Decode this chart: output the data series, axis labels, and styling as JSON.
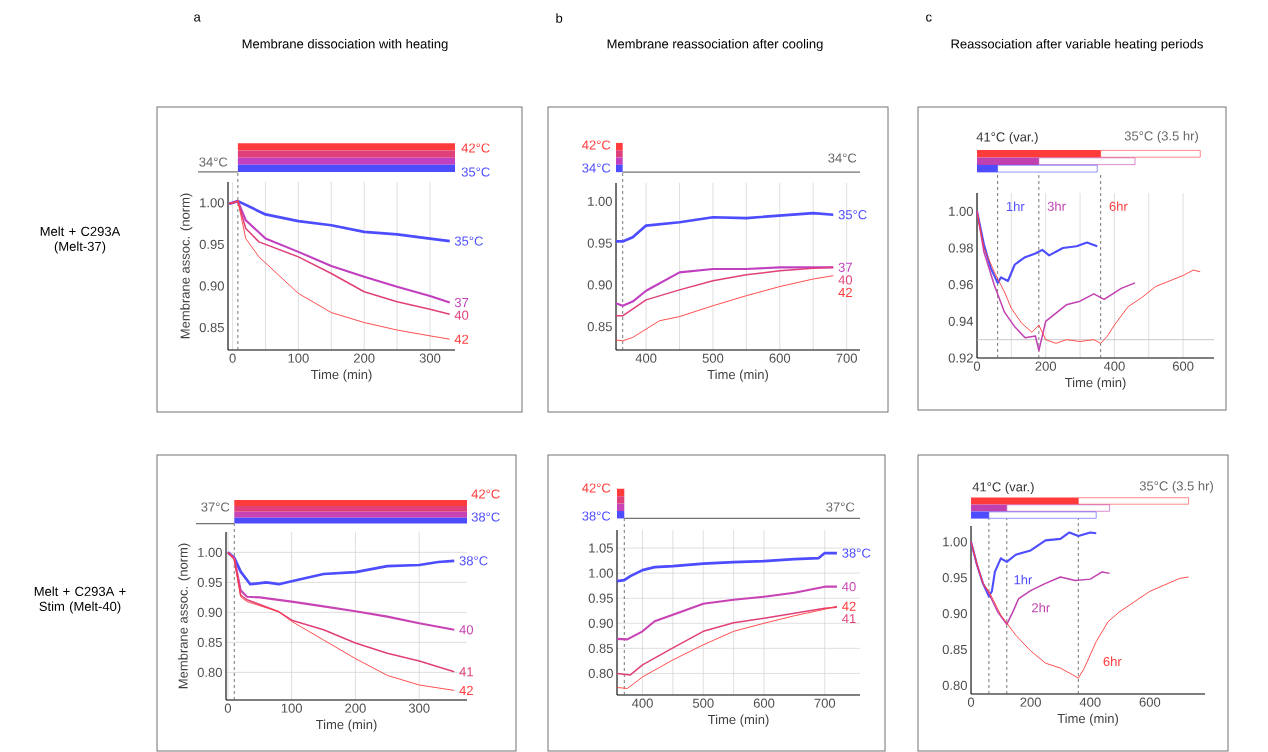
{
  "chart_data": [
    {
      "type": "line",
      "title": "a",
      "subtitle": "Membrane dissociation with heating",
      "xlabel": "Time (min)",
      "ylabel": "Membrane assoc. (norm)",
      "annotations": [
        "Melt + C293A (Melt-37)",
        "34°C",
        "42°C",
        "35°C"
      ],
      "xlim": [
        -7,
        338
      ],
      "ylim": [
        0.823,
        1.025
      ],
      "xticks": [
        0,
        {
          "value": 50,
          "label": null
        },
        100,
        {
          "value": 150,
          "label": null
        },
        200,
        {
          "value": 250,
          "label": null
        },
        300
      ],
      "yticks": [
        0.85,
        {
          "value": 0.9,
          "label": "0.90"
        },
        0.95,
        {
          "value": 1,
          "label": "1.00"
        }
      ],
      "grid": "x",
      "ref_lines": [
        {
          "axis": "x",
          "value": 8,
          "color": "#555555",
          "line_style": "dashed"
        }
      ],
      "series": [
        {
          "name": "35°C",
          "color": "#4d4dff",
          "x": [
            -5,
            0,
            8,
            50,
            100,
            150,
            200,
            250,
            300,
            330
          ],
          "values": [
            0.999,
            1.0,
            1.002,
            0.986,
            0.978,
            0.973,
            0.965,
            0.962,
            0.957,
            0.954
          ]
        },
        {
          "name": "37",
          "color": "#c040c0",
          "x": [
            -5,
            0,
            8,
            20,
            50,
            100,
            150,
            200,
            250,
            300,
            330
          ],
          "values": [
            0.999,
            1.0,
            1.002,
            0.979,
            0.957,
            0.941,
            0.924,
            0.911,
            0.899,
            0.888,
            0.88
          ]
        },
        {
          "name": "40",
          "color": "#e0407a",
          "x": [
            -5,
            0,
            8,
            20,
            40,
            100,
            150,
            200,
            250,
            300,
            330
          ],
          "values": [
            0.999,
            1.0,
            1.002,
            0.969,
            0.953,
            0.935,
            0.915,
            0.893,
            0.881,
            0.872,
            0.866
          ]
        },
        {
          "name": "42",
          "color": "#ff3b3b",
          "x": [
            -5,
            0,
            8,
            20,
            40,
            100,
            150,
            200,
            250,
            300,
            330
          ],
          "values": [
            0.999,
            1.0,
            1.002,
            0.957,
            0.935,
            0.891,
            0.868,
            0.856,
            0.847,
            0.84,
            0.836
          ]
        }
      ]
    },
    {
      "type": "line",
      "title": "b",
      "subtitle": "Membrane reassociation after cooling",
      "xlabel": "Time (min)",
      "annotations": [
        "42°C",
        "34°C",
        "34°C"
      ],
      "xlim": [
        355,
        720
      ],
      "ylim": [
        0.822,
        1.022
      ],
      "xticks": [
        400,
        {
          "value": 450,
          "label": null
        },
        500,
        {
          "value": 550,
          "label": null
        },
        600,
        {
          "value": 650,
          "label": null
        },
        700
      ],
      "yticks": [
        0.85,
        {
          "value": 0.9,
          "label": "0.90"
        },
        0.95,
        {
          "value": 1,
          "label": "1.00"
        }
      ],
      "grid": "x",
      "ref_lines": [
        {
          "axis": "x",
          "value": 365,
          "color": "#555555",
          "line_style": "dashed"
        }
      ],
      "series": [
        {
          "name": "35°C",
          "color": "#4d4dff",
          "x": [
            355,
            365,
            380,
            400,
            450,
            500,
            550,
            600,
            650,
            680
          ],
          "values": [
            0.952,
            0.952,
            0.957,
            0.971,
            0.975,
            0.981,
            0.98,
            0.983,
            0.986,
            0.984
          ]
        },
        {
          "name": "37",
          "color": "#c040c0",
          "x": [
            355,
            365,
            380,
            400,
            450,
            500,
            550,
            600,
            650,
            680
          ],
          "values": [
            0.878,
            0.875,
            0.88,
            0.893,
            0.915,
            0.919,
            0.919,
            0.921,
            0.921,
            0.921
          ]
        },
        {
          "name": "40",
          "color": "#e0407a",
          "x": [
            355,
            365,
            400,
            450,
            500,
            550,
            600,
            650,
            680
          ],
          "values": [
            0.863,
            0.863,
            0.882,
            0.894,
            0.905,
            0.912,
            0.917,
            0.92,
            0.921
          ]
        },
        {
          "name": "42",
          "color": "#ff3b3b",
          "x": [
            355,
            365,
            380,
            420,
            450,
            500,
            550,
            600,
            650,
            680
          ],
          "values": [
            0.834,
            0.833,
            0.837,
            0.857,
            0.862,
            0.875,
            0.887,
            0.898,
            0.907,
            0.911
          ]
        }
      ]
    },
    {
      "type": "line",
      "title": "c",
      "subtitle": "Reassociation after variable heating periods",
      "xlabel": "Time (min)",
      "annotations": [
        "41°C (var.)",
        "35°C (3.5 hr)"
      ],
      "xlim": [
        0,
        690
      ],
      "ylim": [
        0.92,
        1.01
      ],
      "xticks": [
        0,
        {
          "value": 100,
          "label": null
        },
        200,
        {
          "value": 300,
          "label": null
        },
        400,
        {
          "value": 500,
          "label": null
        },
        600
      ],
      "yticks": [
        0.92,
        0.94,
        0.96,
        0.98,
        {
          "value": 1,
          "label": "1.00"
        }
      ],
      "grid": "x",
      "ref_lines": [
        {
          "axis": "x",
          "value": 60,
          "color": "#555555",
          "line_style": "dashed"
        },
        {
          "axis": "x",
          "value": 180,
          "color": "#555555",
          "line_style": "dashed"
        },
        {
          "axis": "x",
          "value": 360,
          "color": "#555555",
          "line_style": "dashed"
        },
        {
          "axis": "y",
          "value": 0.93,
          "color": "#bbbbbb",
          "line_style": "solid"
        }
      ],
      "series": [
        {
          "name": "1hr",
          "color": "#4d4dff",
          "x": [
            0,
            20,
            40,
            60,
            70,
            90,
            110,
            140,
            170,
            190,
            210,
            250,
            290,
            320,
            350
          ],
          "values": [
            1.0,
            0.982,
            0.969,
            0.961,
            0.964,
            0.962,
            0.971,
            0.975,
            0.977,
            0.979,
            0.976,
            0.98,
            0.981,
            0.983,
            0.981
          ]
        },
        {
          "name": "3hr",
          "color": "#c040b0",
          "x": [
            0,
            20,
            50,
            80,
            110,
            140,
            170,
            180,
            200,
            220,
            260,
            300,
            340,
            370,
            420,
            460
          ],
          "values": [
            1.0,
            0.978,
            0.96,
            0.945,
            0.937,
            0.931,
            0.932,
            0.924,
            0.94,
            0.943,
            0.949,
            0.951,
            0.955,
            0.952,
            0.958,
            0.961
          ]
        },
        {
          "name": "6hr",
          "color": "#ff3b3b",
          "x": [
            0,
            20,
            50,
            80,
            100,
            130,
            160,
            180,
            200,
            230,
            260,
            300,
            340,
            360,
            380,
            400,
            440,
            480,
            520,
            560,
            600,
            630,
            650
          ],
          "values": [
            1.0,
            0.98,
            0.967,
            0.956,
            0.947,
            0.939,
            0.934,
            0.938,
            0.93,
            0.928,
            0.93,
            0.929,
            0.93,
            0.928,
            0.932,
            0.938,
            0.948,
            0.953,
            0.959,
            0.962,
            0.965,
            0.968,
            0.967
          ]
        }
      ]
    },
    {
      "type": "line",
      "xlabel": "Time (min)",
      "ylabel": "Membrane assoc. (norm)",
      "annotations": [
        "Melt + C293A + Stim (Melt-40)",
        "37°C",
        "42°C",
        "38°C"
      ],
      "xlim": [
        -3,
        375
      ],
      "ylim": [
        0.754,
        1.034
      ],
      "xticks": [
        0,
        100,
        200,
        300
      ],
      "yticks": [
        {
          "value": 0.8,
          "label": "0.80"
        },
        0.85,
        {
          "value": 0.9,
          "label": "0.90"
        },
        0.95,
        {
          "value": 1,
          "label": "1.00"
        }
      ],
      "grid": true,
      "ref_lines": [
        {
          "axis": "x",
          "value": 10,
          "color": "#555555",
          "line_style": "dashed"
        }
      ],
      "series": [
        {
          "name": "38°C",
          "color": "#4d4dff",
          "x": [
            0,
            10,
            20,
            35,
            60,
            80,
            100,
            150,
            200,
            250,
            300,
            330,
            355
          ],
          "values": [
            1.0,
            0.991,
            0.968,
            0.947,
            0.95,
            0.947,
            0.952,
            0.964,
            0.967,
            0.977,
            0.979,
            0.984,
            0.986
          ]
        },
        {
          "name": "40",
          "color": "#c844b4",
          "x": [
            0,
            10,
            20,
            30,
            50,
            100,
            150,
            200,
            250,
            300,
            355
          ],
          "values": [
            1.0,
            0.99,
            0.937,
            0.926,
            0.925,
            0.918,
            0.91,
            0.902,
            0.893,
            0.882,
            0.871
          ]
        },
        {
          "name": "41",
          "color": "#e0407a",
          "x": [
            0,
            10,
            20,
            30,
            80,
            100,
            150,
            200,
            250,
            300,
            355
          ],
          "values": [
            1.0,
            0.99,
            0.929,
            0.921,
            0.901,
            0.887,
            0.871,
            0.849,
            0.832,
            0.819,
            0.801
          ]
        },
        {
          "name": "42",
          "color": "#ff3b3b",
          "x": [
            0,
            10,
            20,
            30,
            80,
            100,
            150,
            200,
            250,
            300,
            355
          ],
          "values": [
            1.0,
            0.988,
            0.926,
            0.918,
            0.901,
            0.885,
            0.854,
            0.823,
            0.795,
            0.779,
            0.77
          ]
        }
      ]
    },
    {
      "type": "line",
      "xlabel": "Time (min)",
      "annotations": [
        "42°C",
        "38°C",
        "37°C"
      ],
      "xlim": [
        358,
        758
      ],
      "ylim": [
        0.757,
        1.086
      ],
      "xticks": [
        400,
        {
          "value": 450,
          "label": null
        },
        500,
        {
          "value": 550,
          "label": null
        },
        600,
        700
      ],
      "yticks": [
        {
          "value": 0.8,
          "label": "0.80"
        },
        0.85,
        {
          "value": 0.9,
          "label": "0.90"
        },
        0.95,
        {
          "value": 1,
          "label": "1.00"
        },
        1.05
      ],
      "grid": true,
      "ref_lines": [
        {
          "axis": "x",
          "value": 370,
          "color": "#555555",
          "line_style": "dashed"
        }
      ],
      "series": [
        {
          "name": "38°C",
          "color": "#4d4dff",
          "x": [
            358,
            370,
            380,
            400,
            420,
            450,
            500,
            550,
            600,
            650,
            690,
            700,
            720
          ],
          "values": [
            0.984,
            0.986,
            0.994,
            1.006,
            1.012,
            1.014,
            1.019,
            1.022,
            1.024,
            1.028,
            1.03,
            1.04,
            1.04
          ]
        },
        {
          "name": "40",
          "color": "#c844b4",
          "x": [
            358,
            375,
            400,
            420,
            450,
            500,
            550,
            600,
            650,
            700,
            720
          ],
          "values": [
            0.869,
            0.868,
            0.884,
            0.904,
            0.917,
            0.939,
            0.947,
            0.953,
            0.961,
            0.973,
            0.973
          ]
        },
        {
          "name": "41",
          "color": "#e0407a",
          "x": [
            358,
            380,
            400,
            450,
            500,
            550,
            600,
            650,
            700,
            720
          ],
          "values": [
            0.8,
            0.797,
            0.817,
            0.851,
            0.884,
            0.901,
            0.91,
            0.92,
            0.93,
            0.932
          ]
        },
        {
          "name": "42",
          "color": "#ff3b3b",
          "x": [
            358,
            375,
            400,
            450,
            500,
            550,
            600,
            650,
            700,
            720
          ],
          "values": [
            0.772,
            0.77,
            0.793,
            0.827,
            0.857,
            0.884,
            0.9,
            0.915,
            0.928,
            0.934
          ]
        }
      ]
    },
    {
      "type": "line",
      "xlabel": "Time (min)",
      "annotations": [
        "41°C (var.)",
        "35°C (3.5 hr)"
      ],
      "xlim": [
        0,
        785
      ],
      "ylim": [
        0.788,
        1.022
      ],
      "xticks": [
        0,
        200,
        400,
        600
      ],
      "yticks": [
        {
          "value": 0.8,
          "label": "0.80"
        },
        0.85,
        {
          "value": 0.9,
          "label": "0.90"
        },
        0.95,
        {
          "value": 1,
          "label": "1.00"
        }
      ],
      "ref_lines": [
        {
          "axis": "x",
          "value": 60,
          "color": "#555555",
          "line_style": "dashed"
        },
        {
          "axis": "x",
          "value": 120,
          "color": "#555555",
          "line_style": "dashed"
        },
        {
          "axis": "x",
          "value": 360,
          "color": "#555555",
          "line_style": "dashed"
        }
      ],
      "series": [
        {
          "name": "1hr",
          "color": "#4d4dff",
          "x": [
            0,
            20,
            40,
            60,
            70,
            80,
            100,
            120,
            150,
            200,
            250,
            300,
            330,
            360,
            400,
            420
          ],
          "values": [
            1.0,
            0.968,
            0.942,
            0.924,
            0.931,
            0.958,
            0.977,
            0.972,
            0.982,
            0.988,
            1.002,
            1.004,
            1.013,
            1.008,
            1.013,
            1.012
          ]
        },
        {
          "name": "2hr",
          "color": "#c040b0",
          "x": [
            0,
            20,
            40,
            60,
            90,
            120,
            140,
            160,
            200,
            250,
            300,
            350,
            400,
            440,
            465
          ],
          "values": [
            1.0,
            0.968,
            0.942,
            0.928,
            0.902,
            0.885,
            0.902,
            0.921,
            0.932,
            0.942,
            0.951,
            0.946,
            0.948,
            0.958,
            0.956
          ]
        },
        {
          "name": "6hr",
          "color": "#ff3b3b",
          "x": [
            0,
            20,
            40,
            60,
            100,
            150,
            200,
            250,
            300,
            340,
            360,
            380,
            420,
            460,
            500,
            550,
            600,
            650,
            700,
            730
          ],
          "values": [
            1.0,
            0.969,
            0.942,
            0.931,
            0.898,
            0.87,
            0.848,
            0.831,
            0.824,
            0.815,
            0.81,
            0.824,
            0.861,
            0.889,
            0.903,
            0.917,
            0.931,
            0.94,
            0.949,
            0.951
          ]
        }
      ]
    }
  ]
}
